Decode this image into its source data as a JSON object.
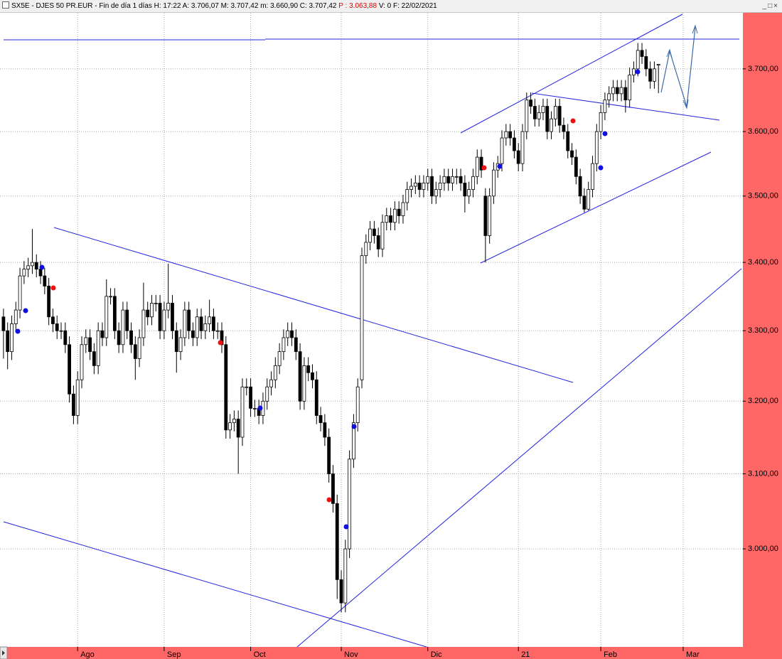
{
  "chart_data": {
    "type": "candlestick",
    "title": "SX5E - DJES 50 PR.EUR - Fin de día 1 días H: 17:22 A: 3.706,07 M: 3.707,42 m: 3.660,90 C: 3.707,42",
    "title_highlight": "P : 3.063,88",
    "title_end": "V: 0 F: 22/02/2021",
    "log_scale": true,
    "grid": true,
    "up_color": "#ffffff",
    "down_color": "#000000",
    "ylim": [
      2876,
      3800
    ],
    "yticks": [
      {
        "value": 3000,
        "label": "3.000,00"
      },
      {
        "value": 3100,
        "label": "3.100,00"
      },
      {
        "value": 3200,
        "label": "3.200,00"
      },
      {
        "value": 3300,
        "label": "3.300,00"
      },
      {
        "value": 3400,
        "label": "3.400,00"
      },
      {
        "value": 3500,
        "label": "3.500,00"
      },
      {
        "value": 3600,
        "label": "3.600,00"
      },
      {
        "value": 3700,
        "label": "3.700,00"
      }
    ],
    "categories": [
      null,
      null,
      null,
      null,
      null,
      null,
      null,
      null,
      null,
      null,
      null,
      null,
      null,
      null,
      null,
      null,
      null,
      null,
      "Ago",
      null,
      null,
      null,
      null,
      null,
      null,
      null,
      null,
      null,
      null,
      null,
      null,
      null,
      null,
      null,
      null,
      null,
      null,
      null,
      null,
      "Sep",
      null,
      null,
      null,
      null,
      null,
      null,
      null,
      null,
      null,
      null,
      null,
      null,
      null,
      null,
      null,
      null,
      null,
      null,
      null,
      null,
      "Oct",
      null,
      null,
      null,
      null,
      null,
      null,
      null,
      null,
      null,
      null,
      null,
      null,
      null,
      null,
      null,
      null,
      null,
      null,
      null,
      null,
      null,
      "Nov",
      null,
      null,
      null,
      null,
      null,
      null,
      null,
      null,
      null,
      null,
      null,
      null,
      null,
      null,
      null,
      null,
      null,
      null,
      null,
      null,
      "Dic",
      null,
      null,
      null,
      null,
      null,
      null,
      null,
      null,
      null,
      null,
      null,
      null,
      null,
      null,
      null,
      null,
      null,
      null,
      null,
      null,
      null,
      "21",
      null,
      null,
      null,
      null,
      null,
      null,
      null,
      null,
      null,
      null,
      null,
      null,
      null,
      null,
      null,
      null,
      null,
      null,
      null,
      "Feb",
      null,
      null,
      null,
      null,
      null,
      null,
      null,
      null,
      null,
      null,
      null,
      null,
      null,
      null,
      null,
      null,
      null,
      null,
      null,
      "Mar",
      null,
      null,
      null,
      null,
      null,
      null,
      null,
      null,
      null,
      null,
      null,
      null,
      null,
      null
    ],
    "open": [
      3320,
      3300,
      3270,
      3310,
      3330,
      3380,
      3390,
      3395,
      3400,
      3390,
      3380,
      3365,
      3320,
      3310,
      3300,
      3300,
      3280,
      3210,
      3180,
      3230,
      3280,
      3290,
      3270,
      3250,
      3300,
      3290,
      3350,
      3350,
      3300,
      3280,
      3330,
      3300,
      3280,
      3260,
      3290,
      3330,
      3320,
      3340,
      3340,
      3300,
      3330,
      3340,
      3300,
      3270,
      3290,
      3330,
      3300,
      3290,
      3320,
      3300,
      3310,
      3320,
      3300,
      3300,
      3280,
      3160,
      3170,
      3175,
      3150,
      3220,
      3220,
      3190,
      3190,
      3180,
      3200,
      3220,
      3230,
      3250,
      3270,
      3290,
      3300,
      3290,
      3270,
      3200,
      3250,
      3240,
      3230,
      3180,
      3170,
      3150,
      3100,
      3060,
      2960,
      2930,
      3000,
      3120,
      3170,
      3230,
      3410,
      3430,
      3450,
      3440,
      3420,
      3460,
      3470,
      3460,
      3480,
      3470,
      3490,
      3510,
      3515,
      3520,
      3510,
      3520,
      3530,
      3500,
      3510,
      3520,
      3530,
      3520,
      3530,
      3530,
      3520,
      3500,
      3510,
      3530,
      3560,
      3500,
      3440,
      3500,
      3540,
      3550,
      3590,
      3600,
      3590,
      3570,
      3550,
      3600,
      3650,
      3640,
      3620,
      3630,
      3640,
      3600,
      3620,
      3640,
      3610,
      3600,
      3570,
      3560,
      3530,
      3500,
      3480,
      3510,
      3550,
      3600,
      3630,
      3650,
      3660,
      3670,
      3660,
      3670,
      3650,
      3690,
      3700,
      3730,
      3720,
      3700,
      3680,
      3706.07,
      null,
      null,
      null,
      null,
      null,
      null,
      null,
      null,
      null,
      null,
      null,
      null,
      null,
      null,
      null,
      null,
      null,
      null,
      null,
      null
    ],
    "high": [
      3332,
      3312,
      3322,
      3342,
      3392,
      3402,
      3407,
      3450,
      3412,
      3402,
      3392,
      3377,
      3332,
      3322,
      3312,
      3312,
      3292,
      3222,
      3242,
      3292,
      3302,
      3302,
      3282,
      3312,
      3312,
      3375,
      3362,
      3362,
      3312,
      3342,
      3342,
      3312,
      3292,
      3302,
      3370,
      3342,
      3352,
      3352,
      3352,
      3342,
      3398,
      3352,
      3312,
      3302,
      3342,
      3342,
      3312,
      3332,
      3332,
      3322,
      3345,
      3332,
      3312,
      3312,
      3292,
      3182,
      3187,
      3187,
      3232,
      3232,
      3232,
      3202,
      3202,
      3212,
      3232,
      3242,
      3262,
      3282,
      3302,
      3312,
      3312,
      3302,
      3282,
      3262,
      3262,
      3252,
      3242,
      3192,
      3182,
      3162,
      3112,
      3072,
      2972,
      3012,
      3132,
      3182,
      3232,
      3422,
      3442,
      3462,
      3462,
      3452,
      3472,
      3482,
      3482,
      3492,
      3492,
      3502,
      3522,
      3527,
      3532,
      3532,
      3532,
      3542,
      3542,
      3522,
      3532,
      3542,
      3542,
      3542,
      3542,
      3542,
      3532,
      3522,
      3542,
      3572,
      3572,
      3512,
      3512,
      3552,
      3562,
      3602,
      3612,
      3612,
      3602,
      3582,
      3612,
      3662,
      3662,
      3652,
      3642,
      3652,
      3652,
      3632,
      3652,
      3652,
      3622,
      3612,
      3582,
      3572,
      3542,
      3512,
      3522,
      3562,
      3612,
      3642,
      3662,
      3672,
      3682,
      3682,
      3682,
      3682,
      3702,
      3712,
      3742,
      3742,
      3732,
      3712,
      3712,
      3707.42,
      null,
      null,
      null,
      null,
      null,
      null,
      null,
      null,
      null,
      null,
      null,
      null,
      null,
      null,
      null,
      null,
      null,
      null,
      null,
      null
    ],
    "low": [
      3260,
      3245,
      3258,
      3298,
      3318,
      3368,
      3378,
      3383,
      3378,
      3368,
      3353,
      3308,
      3298,
      3288,
      3288,
      3268,
      3198,
      3168,
      3168,
      3218,
      3268,
      3258,
      3238,
      3238,
      3278,
      3278,
      3338,
      3288,
      3268,
      3268,
      3288,
      3268,
      3230,
      3248,
      3278,
      3308,
      3308,
      3328,
      3288,
      3288,
      3318,
      3288,
      3240,
      3258,
      3278,
      3288,
      3278,
      3278,
      3288,
      3288,
      3298,
      3288,
      3288,
      3268,
      3148,
      3148,
      3158,
      3100,
      3138,
      3208,
      3178,
      3178,
      3168,
      3168,
      3188,
      3208,
      3218,
      3238,
      3258,
      3278,
      3278,
      3258,
      3188,
      3188,
      3228,
      3218,
      3168,
      3158,
      3138,
      3088,
      3048,
      2935,
      2918,
      2918,
      2988,
      3108,
      3158,
      3218,
      3398,
      3418,
      3428,
      3408,
      3408,
      3448,
      3448,
      3448,
      3458,
      3458,
      3478,
      3498,
      3503,
      3498,
      3498,
      3508,
      3488,
      3488,
      3498,
      3508,
      3508,
      3508,
      3518,
      3508,
      3475,
      3488,
      3498,
      3518,
      3528,
      3400,
      3428,
      3488,
      3528,
      3538,
      3578,
      3578,
      3558,
      3538,
      3538,
      3588,
      3628,
      3608,
      3608,
      3618,
      3588,
      3588,
      3608,
      3598,
      3588,
      3558,
      3548,
      3518,
      3488,
      3475,
      3478,
      3498,
      3538,
      3588,
      3618,
      3638,
      3648,
      3648,
      3648,
      3630,
      3638,
      3678,
      3688,
      3708,
      3688,
      3668,
      3668,
      3660.9,
      null,
      null,
      null,
      null,
      null,
      null,
      null,
      null,
      null,
      null,
      null,
      null,
      null,
      null,
      null,
      null,
      null,
      null,
      null,
      null
    ],
    "close": [
      3300,
      3270,
      3310,
      3330,
      3380,
      3390,
      3395,
      3400,
      3390,
      3380,
      3365,
      3320,
      3310,
      3300,
      3300,
      3280,
      3210,
      3180,
      3230,
      3280,
      3290,
      3270,
      3250,
      3300,
      3290,
      3350,
      3350,
      3300,
      3280,
      3330,
      3300,
      3280,
      3260,
      3290,
      3330,
      3320,
      3340,
      3340,
      3300,
      3330,
      3340,
      3300,
      3270,
      3290,
      3330,
      3300,
      3290,
      3320,
      3300,
      3310,
      3320,
      3300,
      3300,
      3280,
      3160,
      3170,
      3175,
      3150,
      3220,
      3220,
      3190,
      3190,
      3180,
      3200,
      3220,
      3230,
      3250,
      3270,
      3290,
      3300,
      3290,
      3270,
      3200,
      3250,
      3240,
      3230,
      3180,
      3170,
      3150,
      3100,
      3060,
      2960,
      2930,
      3000,
      3120,
      3170,
      3220,
      3410,
      3430,
      3450,
      3440,
      3420,
      3460,
      3470,
      3460,
      3480,
      3470,
      3490,
      3510,
      3515,
      3520,
      3510,
      3520,
      3530,
      3500,
      3510,
      3520,
      3530,
      3520,
      3530,
      3530,
      3520,
      3500,
      3510,
      3530,
      3560,
      3540,
      3440,
      3500,
      3540,
      3550,
      3590,
      3600,
      3590,
      3570,
      3550,
      3600,
      3650,
      3640,
      3620,
      3630,
      3640,
      3600,
      3620,
      3640,
      3610,
      3600,
      3570,
      3560,
      3530,
      3500,
      3480,
      3510,
      3550,
      3600,
      3630,
      3650,
      3660,
      3670,
      3660,
      3670,
      3650,
      3690,
      3700,
      3730,
      3720,
      3700,
      3680,
      3700,
      3707.42,
      null,
      null,
      null,
      null,
      null,
      null,
      null,
      null,
      null,
      null,
      null,
      null,
      null,
      null,
      null,
      null,
      null,
      null,
      null,
      null
    ]
  }
}
